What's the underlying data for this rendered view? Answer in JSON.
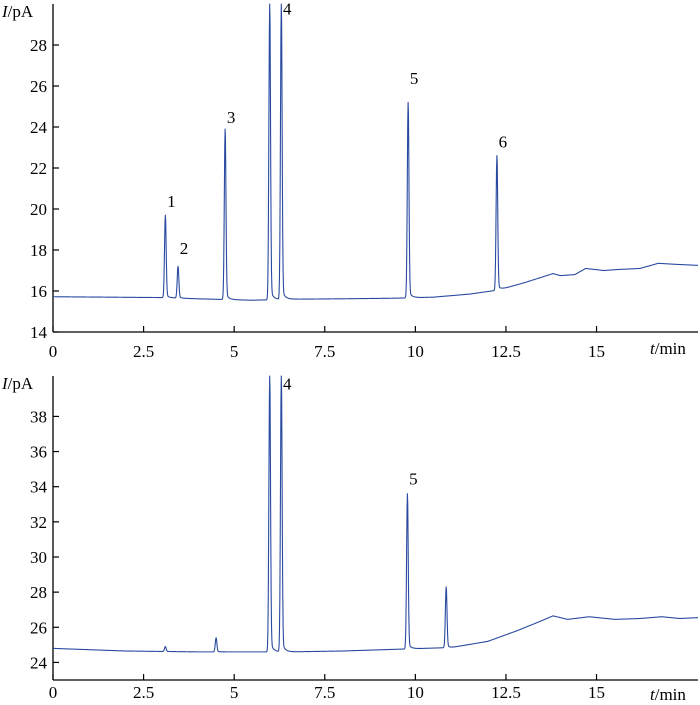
{
  "chart_data": [
    {
      "type": "line",
      "panel": "top",
      "ylabel_italic": "I",
      "ylabel_unit": "/pA",
      "xlabel_italic": "t",
      "xlabel_unit": "/min",
      "xlim": [
        0,
        17.8
      ],
      "ylim": [
        14,
        30
      ],
      "xticks": [
        0,
        2.5,
        5,
        7.5,
        10,
        12.5,
        15
      ],
      "xtick_labels": [
        "0",
        "2.5",
        "5",
        "7.5",
        "10",
        "12.5",
        "15"
      ],
      "yticks": [
        14,
        16,
        18,
        20,
        22,
        24,
        26,
        28
      ],
      "ytick_labels": [
        "14",
        "16",
        "18",
        "20",
        "22",
        "24",
        "26",
        "28"
      ],
      "color": "#2a4aa0",
      "baseline": [
        [
          0,
          15.72
        ],
        [
          3.0,
          15.68
        ],
        [
          4.0,
          15.62
        ],
        [
          5.5,
          15.55
        ],
        [
          6.6,
          15.6
        ],
        [
          8.0,
          15.62
        ],
        [
          9.5,
          15.65
        ],
        [
          10.5,
          15.7
        ],
        [
          11.5,
          15.85
        ],
        [
          12.3,
          16.05
        ],
        [
          13.0,
          16.4
        ],
        [
          13.8,
          16.85
        ],
        [
          14.0,
          16.75
        ],
        [
          14.4,
          16.8
        ],
        [
          14.7,
          17.1
        ],
        [
          15.2,
          17.0
        ],
        [
          15.6,
          17.05
        ],
        [
          16.2,
          17.1
        ],
        [
          16.7,
          17.35
        ],
        [
          17.2,
          17.3
        ],
        [
          17.8,
          17.25
        ]
      ],
      "peaks": [
        {
          "label": "1",
          "t": 3.1,
          "height": 19.7,
          "label_y": 19.9
        },
        {
          "label": "2",
          "t": 3.45,
          "height": 17.2,
          "label_y": 17.6
        },
        {
          "label": "3",
          "t": 4.75,
          "height": 23.9,
          "label_y": 24.0
        },
        {
          "label": "",
          "t": 5.98,
          "height": 30.0,
          "label_y": null
        },
        {
          "label": "4",
          "t": 6.3,
          "height": 30.0,
          "label_y": 29.3
        },
        {
          "label": "5",
          "t": 9.8,
          "height": 25.2,
          "label_y": 25.9
        },
        {
          "label": "6",
          "t": 12.25,
          "height": 22.6,
          "label_y": 22.8
        }
      ]
    },
    {
      "type": "line",
      "panel": "bottom",
      "ylabel_italic": "I",
      "ylabel_unit": "/pA",
      "xlabel_italic": "t",
      "xlabel_unit": "/min",
      "xlim": [
        0,
        17.8
      ],
      "ylim": [
        23,
        40.3
      ],
      "xticks": [
        0,
        2.5,
        5,
        7.5,
        10,
        12.5,
        15
      ],
      "xtick_labels": [
        "0",
        "2.5",
        "5",
        "7.5",
        "10",
        "12.5",
        "15"
      ],
      "yticks": [
        24,
        26,
        28,
        30,
        32,
        34,
        36,
        38
      ],
      "ytick_labels": [
        "24",
        "26",
        "28",
        "30",
        "32",
        "34",
        "36",
        "38"
      ],
      "color": "#2a4aa0",
      "baseline": [
        [
          0,
          24.8
        ],
        [
          2.0,
          24.65
        ],
        [
          4.0,
          24.6
        ],
        [
          5.9,
          24.6
        ],
        [
          6.5,
          24.6
        ],
        [
          8.0,
          24.65
        ],
        [
          9.5,
          24.75
        ],
        [
          11.0,
          24.85
        ],
        [
          12.0,
          25.2
        ],
        [
          12.8,
          25.8
        ],
        [
          13.4,
          26.3
        ],
        [
          13.8,
          26.65
        ],
        [
          14.2,
          26.45
        ],
        [
          14.8,
          26.6
        ],
        [
          15.5,
          26.45
        ],
        [
          16.2,
          26.5
        ],
        [
          16.8,
          26.6
        ],
        [
          17.3,
          26.5
        ],
        [
          17.8,
          26.55
        ]
      ],
      "peaks": [
        {
          "label": "",
          "t": 3.1,
          "height": 24.9,
          "label_y": null
        },
        {
          "label": "",
          "t": 4.5,
          "height": 25.4,
          "label_y": null
        },
        {
          "label": "",
          "t": 5.98,
          "height": 40.3,
          "label_y": null
        },
        {
          "label": "4",
          "t": 6.3,
          "height": 40.3,
          "label_y": 39.3
        },
        {
          "label": "5",
          "t": 9.78,
          "height": 33.6,
          "label_y": 33.9
        },
        {
          "label": "",
          "t": 10.85,
          "height": 28.3,
          "label_y": null
        }
      ]
    }
  ]
}
